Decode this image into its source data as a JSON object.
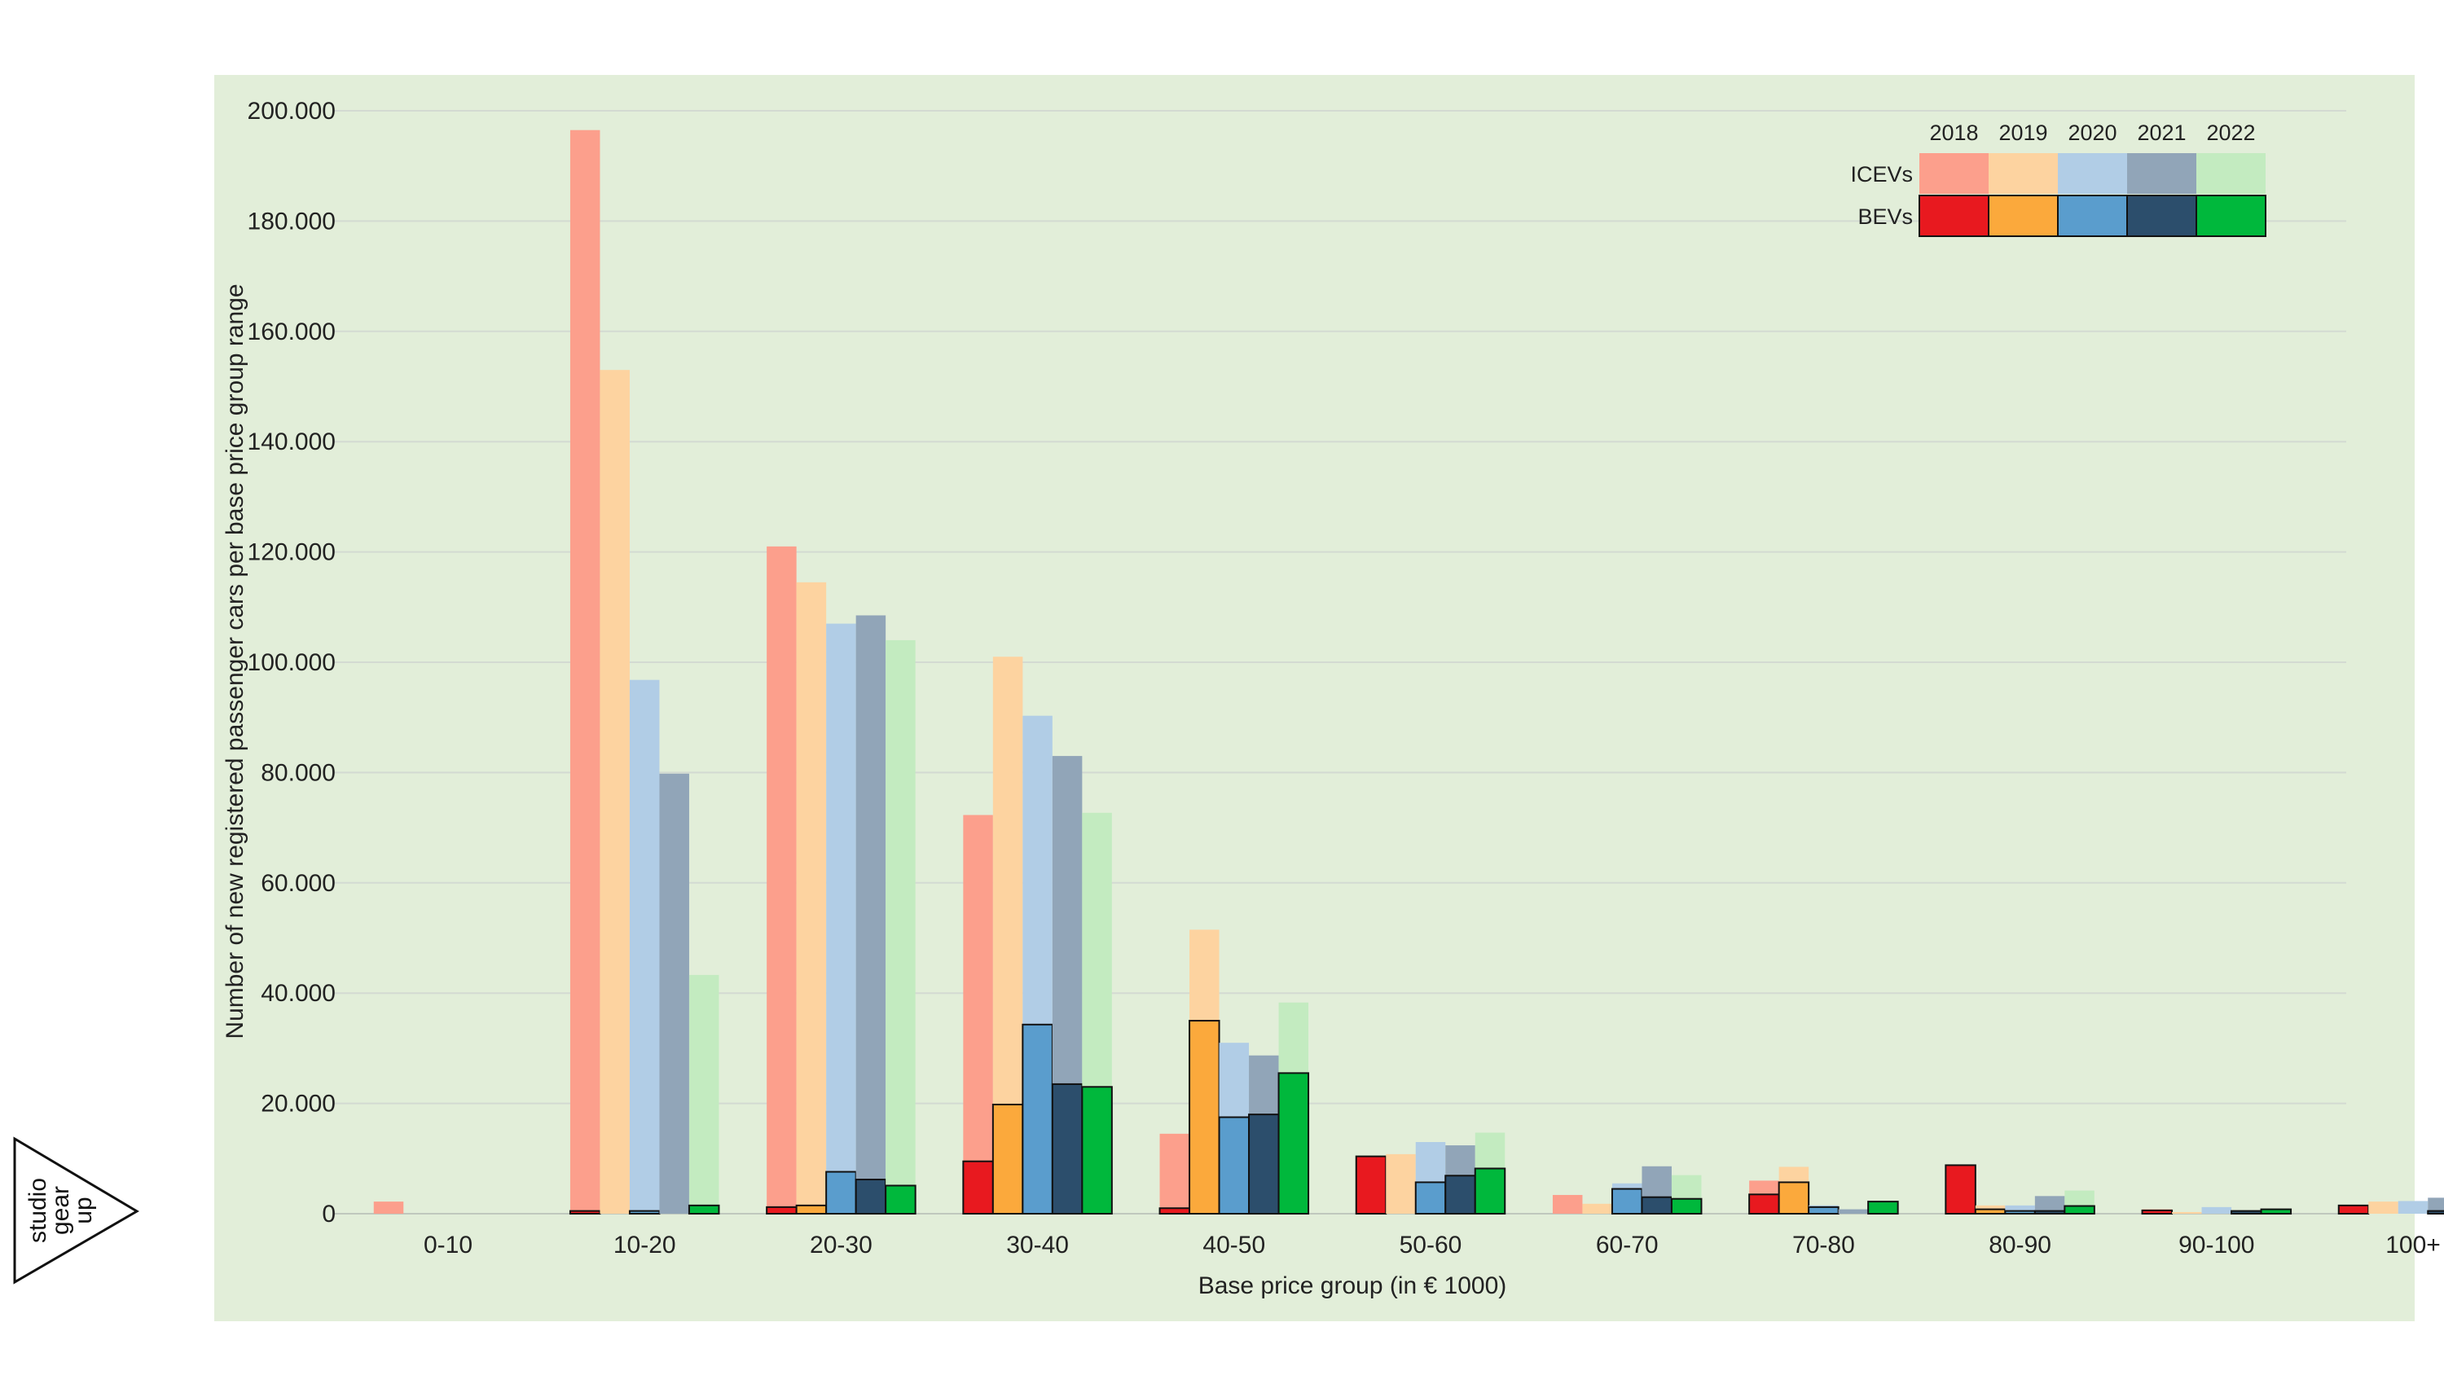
{
  "chart_data": {
    "type": "bar",
    "xlabel": "Base price group (in € 1000)",
    "ylabel": "Number of new registered passenger cars per base price group range",
    "ylim": [
      0,
      200000
    ],
    "yticks": [
      0,
      20000,
      40000,
      60000,
      80000,
      100000,
      120000,
      140000,
      160000,
      180000,
      200000
    ],
    "ytick_labels": [
      "0",
      "20.000",
      "40.000",
      "60.000",
      "80.000",
      "100.000",
      "120.000",
      "140.000",
      "160.000",
      "180.000",
      "200.000"
    ],
    "grid": true,
    "legend_placement": "top-right",
    "categories": [
      "0-10",
      "10-20",
      "20-30",
      "30-40",
      "40-50",
      "50-60",
      "60-70",
      "70-80",
      "80-90",
      "90-100",
      "100+"
    ],
    "years": [
      "2018",
      "2019",
      "2020",
      "2021",
      "2022"
    ],
    "groups": [
      {
        "name": "ICEVs",
        "colors": [
          "#fc9f8c",
          "#fdd3a0",
          "#b1cde6",
          "#91a5b8",
          "#c3ebc0"
        ],
        "series": [
          {
            "name": "2018",
            "values": [
              2200,
              196500,
              121000,
              72300,
              14500,
              10000,
              3400,
              6000,
              8000,
              800,
              1500
            ]
          },
          {
            "name": "2019",
            "values": [
              0,
              153000,
              114500,
              101000,
              51500,
              10800,
              1800,
              8500,
              1500,
              300,
              2200
            ]
          },
          {
            "name": "2020",
            "values": [
              0,
              96800,
              107000,
              90300,
              31000,
              13000,
              5500,
              1500,
              1500,
              1200,
              2300
            ]
          },
          {
            "name": "2021",
            "values": [
              0,
              79800,
              108500,
              83000,
              28700,
              12400,
              8600,
              800,
              3200,
              500,
              2900
            ]
          },
          {
            "name": "2022",
            "values": [
              0,
              43300,
              104000,
              72700,
              38300,
              14700,
              7000,
              1500,
              4200,
              700,
              2000
            ]
          }
        ]
      },
      {
        "name": "BEVs",
        "colors": [
          "#e8191f",
          "#fba93c",
          "#5a9dcd",
          "#2c4e6c",
          "#00b83c"
        ],
        "series": [
          {
            "name": "2018",
            "values": [
              0,
              500,
              1200,
              9500,
              1000,
              10400,
              0,
              3500,
              8800,
              600,
              1500
            ]
          },
          {
            "name": "2019",
            "values": [
              0,
              0,
              1500,
              19800,
              35000,
              0,
              0,
              5700,
              800,
              0,
              0
            ]
          },
          {
            "name": "2020",
            "values": [
              0,
              500,
              7600,
              34300,
              17500,
              5700,
              4500,
              1200,
              500,
              0,
              0
            ]
          },
          {
            "name": "2021",
            "values": [
              0,
              0,
              6200,
              23500,
              18000,
              6900,
              3000,
              0,
              500,
              500,
              500
            ]
          },
          {
            "name": "2022",
            "values": [
              0,
              1500,
              5100,
              23000,
              25500,
              8200,
              2700,
              2200,
              1400,
              800,
              300
            ]
          }
        ]
      }
    ]
  },
  "logo": {
    "line1": "studio",
    "line2": "gear",
    "line3": "up"
  }
}
